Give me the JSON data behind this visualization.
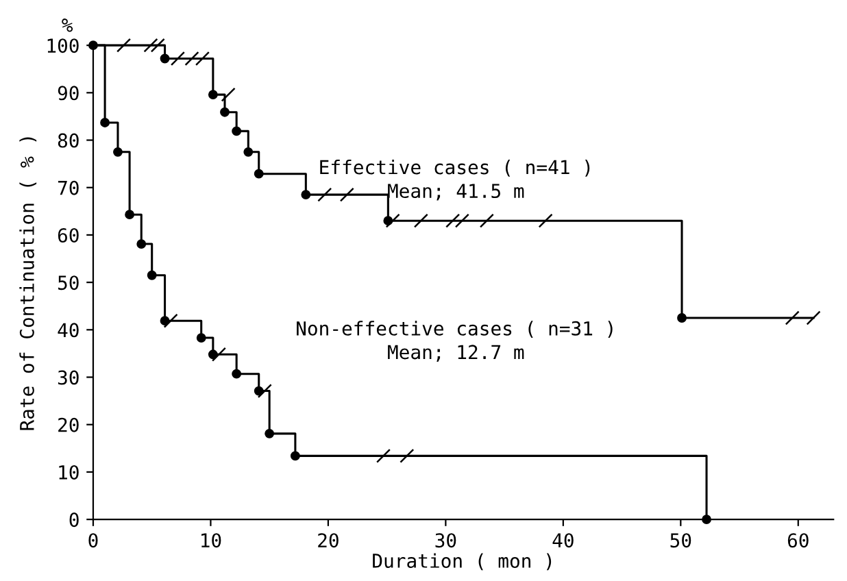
{
  "chart_data": {
    "type": "step",
    "xlabel": "Duration ( mon )",
    "ylabel": "Rate of Continuation ( % )",
    "series": [
      {
        "color": "#000000",
        "x": [
          0,
          6.1,
          10.2,
          11.2,
          12.2,
          13.2,
          14.1,
          18.1,
          25.1,
          50.1,
          61.3
        ],
        "values": [
          100,
          97.2,
          89.6,
          85.9,
          81.9,
          77.5,
          72.9,
          68.5,
          63.0,
          42.5,
          42.5
        ]
      },
      {
        "type": "scatter",
        "marker": "circle",
        "color": "#000000",
        "x": [
          0,
          6.1,
          10.2,
          11.2,
          12.2,
          13.2,
          14.1,
          18.1,
          25.1,
          50.1
        ],
        "values": [
          100,
          97.2,
          89.6,
          85.9,
          81.9,
          77.5,
          72.9,
          68.5,
          63.0,
          42.5
        ]
      },
      {
        "type": "scatter",
        "color": "#000000",
        "x": [
          2.6,
          4.9,
          5.5,
          7.2,
          8.4,
          9.3,
          11.5,
          19.7,
          21.6,
          25.5,
          27.9,
          30.6,
          31.4,
          33.5,
          38.5,
          59.5,
          61.3
        ],
        "values": [
          100,
          100,
          100,
          97.2,
          97.2,
          97.2,
          89.6,
          68.5,
          68.5,
          63.0,
          63.0,
          63.0,
          63.0,
          63.0,
          63.0,
          42.5,
          42.5
        ]
      },
      {
        "color": "#000000",
        "x": [
          0,
          1.0,
          2.1,
          3.1,
          4.1,
          5.0,
          6.1,
          9.2,
          10.2,
          12.2,
          14.1,
          15.0,
          17.2,
          52.2
        ],
        "values": [
          100,
          83.7,
          77.5,
          64.3,
          58.1,
          51.5,
          41.9,
          38.3,
          34.8,
          30.7,
          27.1,
          18.1,
          13.4,
          0
        ]
      },
      {
        "type": "scatter",
        "marker": "circle",
        "color": "#000000",
        "x": [
          1.0,
          2.1,
          3.1,
          4.1,
          5.0,
          6.1,
          9.2,
          10.2,
          12.2,
          14.1,
          15.0,
          17.2,
          52.2
        ],
        "values": [
          83.7,
          77.5,
          64.3,
          58.1,
          51.5,
          41.9,
          38.3,
          34.8,
          30.7,
          27.1,
          18.1,
          13.4,
          0
        ]
      },
      {
        "type": "scatter",
        "color": "#000000",
        "x": [
          6.6,
          10.7,
          14.6,
          24.7,
          26.7
        ],
        "values": [
          41.9,
          34.8,
          27.1,
          13.4,
          13.4
        ]
      }
    ],
    "annotations": [
      "%",
      "Effective cases ( n=41 )",
      "Mean; 41.5 m",
      "Non-effective cases ( n=31 )",
      "Mean; 12.7 m"
    ],
    "xlim": [
      0,
      63
    ],
    "ylim": [
      0,
      100
    ],
    "xticks": [
      0,
      10,
      20,
      30,
      40,
      50,
      60
    ],
    "yticks": [
      0,
      10,
      20,
      30,
      40,
      50,
      60,
      70,
      80,
      90,
      100
    ],
    "grid": false,
    "legend": false
  }
}
